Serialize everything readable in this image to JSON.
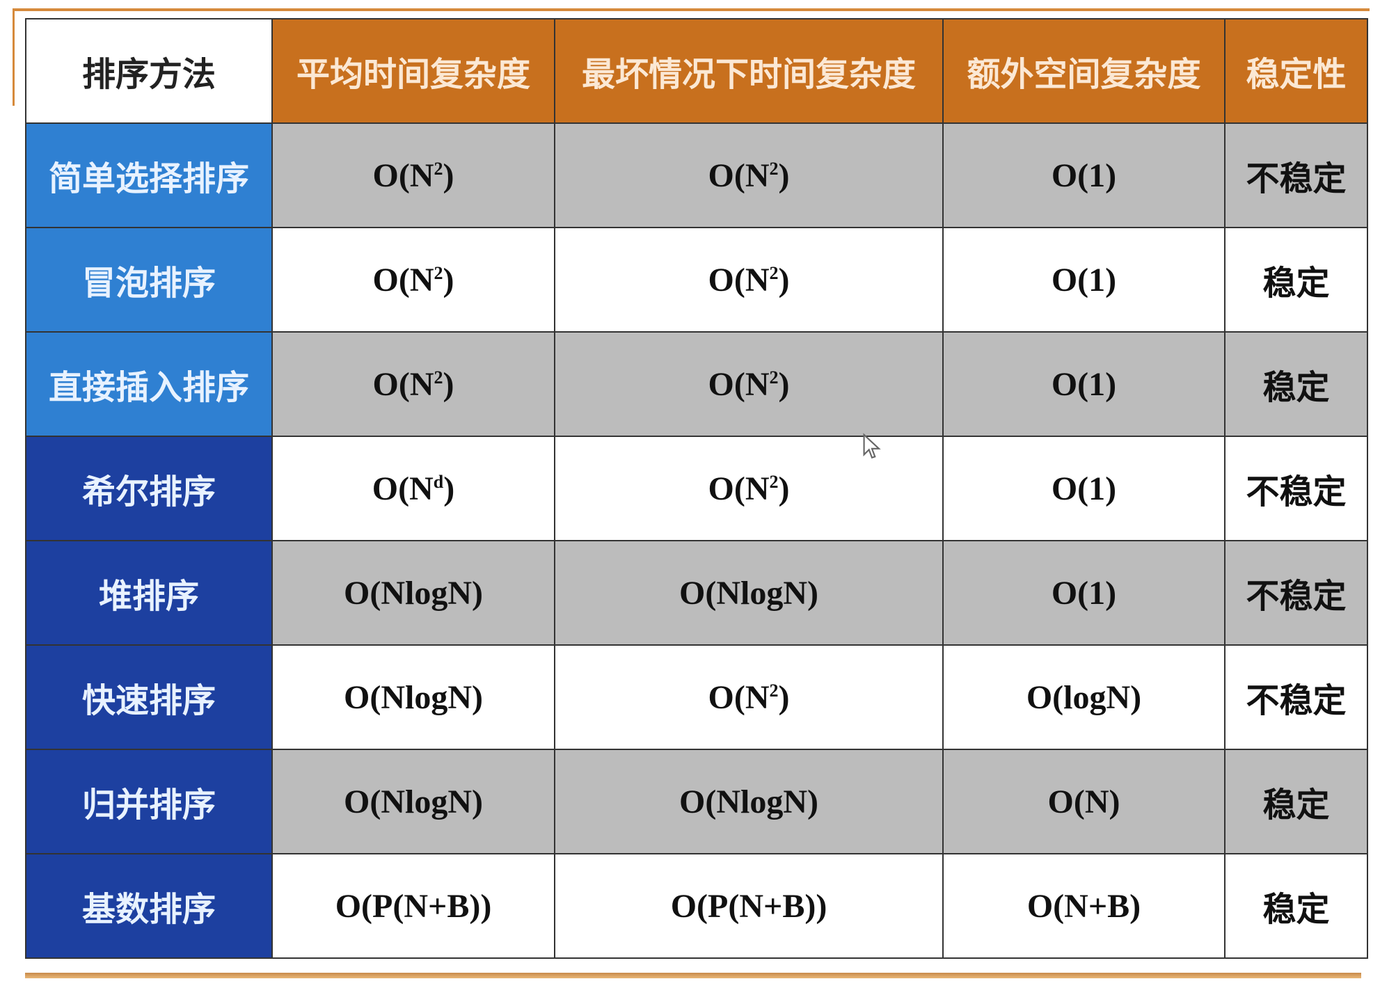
{
  "header": [
    "排序方法",
    "平均时间复杂度",
    "最坏情况下时间复杂度",
    "额外空间复杂度",
    "稳定性"
  ],
  "rows": [
    {
      "method": "简单选择排序",
      "avg": {
        "base": "O(N",
        "sup": "2",
        "end": ")"
      },
      "worst": {
        "base": "O(N",
        "sup": "2",
        "end": ")"
      },
      "space": "O(1)",
      "stability": "不稳定"
    },
    {
      "method": "冒泡排序",
      "avg": {
        "base": "O(N",
        "sup": "2",
        "end": ")"
      },
      "worst": {
        "base": "O(N",
        "sup": "2",
        "end": ")"
      },
      "space": "O(1)",
      "stability": "稳定"
    },
    {
      "method": "直接插入排序",
      "avg": {
        "base": "O(N",
        "sup": "2",
        "end": ")"
      },
      "worst": {
        "base": "O(N",
        "sup": "2",
        "end": ")"
      },
      "space": "O(1)",
      "stability": "稳定"
    },
    {
      "method": "希尔排序",
      "avg": {
        "base": "O(N",
        "sup": "d",
        "end": ")"
      },
      "worst": {
        "base": "O(N",
        "sup": "2",
        "end": ")"
      },
      "space": "O(1)",
      "stability": "不稳定"
    },
    {
      "method": "堆排序",
      "avg": {
        "base": "O(NlogN)",
        "sup": "",
        "end": ""
      },
      "worst": {
        "base": "O(NlogN)",
        "sup": "",
        "end": ""
      },
      "space": "O(1)",
      "stability": "不稳定"
    },
    {
      "method": "快速排序",
      "avg": {
        "base": "O(NlogN)",
        "sup": "",
        "end": ""
      },
      "worst": {
        "base": "O(N",
        "sup": "2",
        "end": ")"
      },
      "space": "O(logN)",
      "stability": "不稳定"
    },
    {
      "method": "归并排序",
      "avg": {
        "base": "O(NlogN)",
        "sup": "",
        "end": ""
      },
      "worst": {
        "base": "O(NlogN)",
        "sup": "",
        "end": ""
      },
      "space": "O(N)",
      "stability": "稳定"
    },
    {
      "method": "基数排序",
      "avg": {
        "base": "O(P(N+B))",
        "sup": "",
        "end": ""
      },
      "worst": {
        "base": "O(P(N+B))",
        "sup": "",
        "end": ""
      },
      "space": "O(N+B)",
      "stability": "稳定"
    }
  ],
  "colors": {
    "header": "#c8701e",
    "method_light": "#2f80d2",
    "method_dark": "#1d40a0",
    "row_gray": "#bcbcbc"
  }
}
